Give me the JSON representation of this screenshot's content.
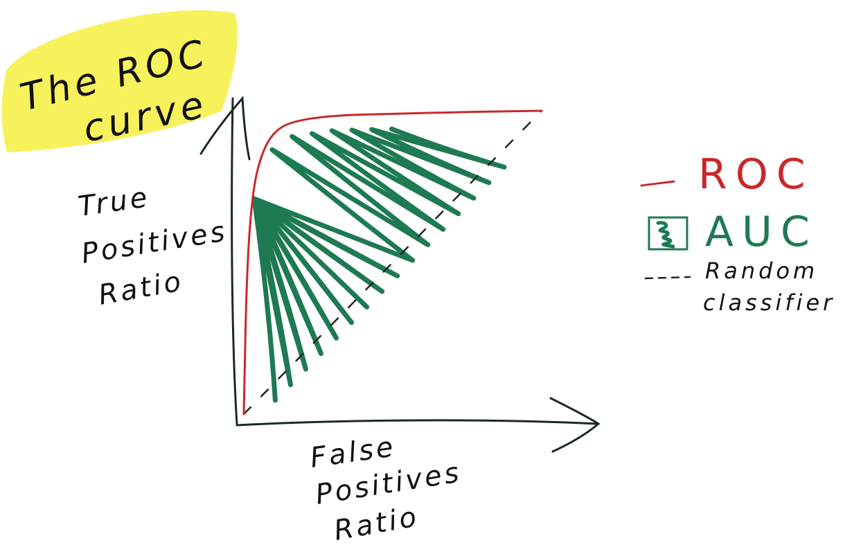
{
  "chart_data": {
    "type": "line",
    "title": [
      "The ROC",
      "curve"
    ],
    "xlabel": [
      "False",
      "Positives",
      "Ratio"
    ],
    "ylabel": [
      "True",
      "Positives",
      "Ratio"
    ],
    "xlim": [
      0,
      1
    ],
    "ylim": [
      0,
      1
    ],
    "grid": false,
    "legend_position": "right",
    "series": [
      {
        "name": "ROC",
        "color": "#c8282a",
        "x": [
          0.0,
          0.01,
          0.03,
          0.06,
          0.1,
          0.16,
          0.3,
          0.5,
          0.7,
          0.85,
          1.0
        ],
        "y": [
          0.0,
          0.48,
          0.74,
          0.86,
          0.93,
          0.965,
          0.985,
          0.99,
          0.995,
          0.998,
          1.0
        ]
      },
      {
        "name": "Random classifier",
        "style": "dashed",
        "color": "#222222",
        "x": [
          0,
          1
        ],
        "y": [
          0,
          1
        ]
      }
    ],
    "area": {
      "name": "AUC",
      "color": "#1e7a52"
    },
    "legend": {
      "roc_label": "ROC",
      "auc_label": "AUC",
      "random_label_line1": "Random",
      "random_label_line2": "classifier"
    }
  },
  "colors": {
    "title_highlight": "#f6f04a",
    "axis": "#1a2a22"
  }
}
